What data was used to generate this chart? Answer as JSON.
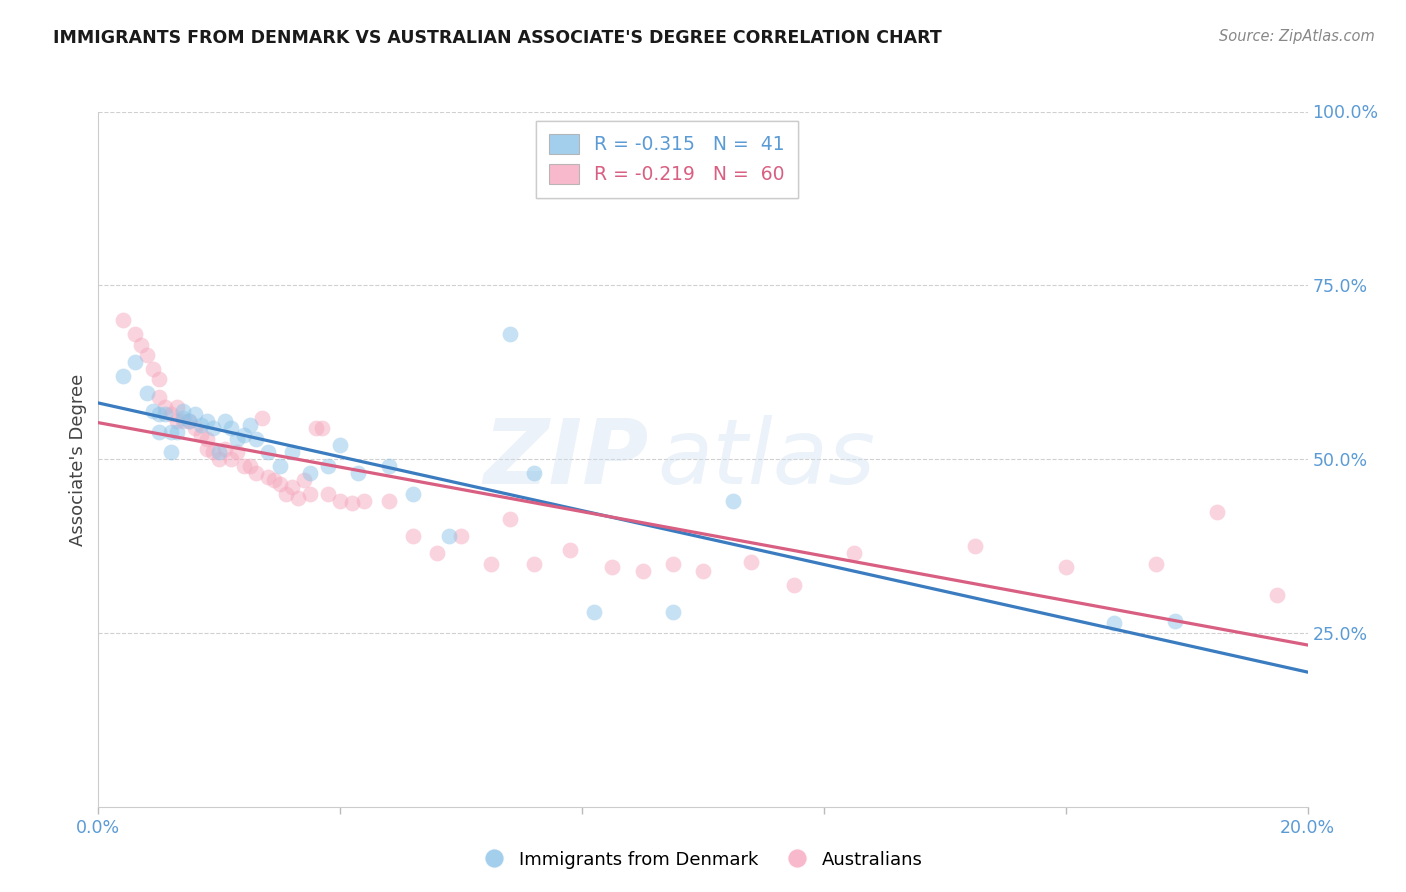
{
  "title": "IMMIGRANTS FROM DENMARK VS AUSTRALIAN ASSOCIATE'S DEGREE CORRELATION CHART",
  "source": "Source: ZipAtlas.com",
  "ylabel": "Associate's Degree",
  "legend_label_blue": "Immigrants from Denmark",
  "legend_label_pink": "Australians",
  "legend_blue_r": "-0.315",
  "legend_blue_n": "41",
  "legend_pink_r": "-0.219",
  "legend_pink_n": "60",
  "xmin": 0.0,
  "xmax": 0.2,
  "ymin": 0.0,
  "ymax": 1.0,
  "blue_color": "#8ec4e8",
  "pink_color": "#f5a8be",
  "blue_line_color": "#3a7cbf",
  "pink_line_color": "#d95f82",
  "right_axis_color": "#5b9bd5",
  "title_color": "#1a1a1a",
  "source_color": "#888888",
  "background_color": "#ffffff",
  "grid_color": "#d0d0d0",
  "blue_points_x": [
    0.004,
    0.006,
    0.008,
    0.009,
    0.01,
    0.01,
    0.011,
    0.012,
    0.012,
    0.013,
    0.014,
    0.014,
    0.015,
    0.016,
    0.017,
    0.018,
    0.019,
    0.02,
    0.021,
    0.022,
    0.023,
    0.024,
    0.025,
    0.026,
    0.028,
    0.03,
    0.032,
    0.035,
    0.038,
    0.04,
    0.043,
    0.048,
    0.052,
    0.058,
    0.068,
    0.072,
    0.082,
    0.095,
    0.105,
    0.168,
    0.178
  ],
  "blue_points_y": [
    0.62,
    0.64,
    0.595,
    0.57,
    0.565,
    0.54,
    0.565,
    0.54,
    0.51,
    0.54,
    0.57,
    0.56,
    0.555,
    0.565,
    0.55,
    0.555,
    0.545,
    0.51,
    0.555,
    0.545,
    0.53,
    0.535,
    0.55,
    0.53,
    0.51,
    0.49,
    0.51,
    0.48,
    0.49,
    0.52,
    0.48,
    0.49,
    0.45,
    0.39,
    0.68,
    0.48,
    0.28,
    0.28,
    0.44,
    0.265,
    0.268
  ],
  "pink_points_x": [
    0.004,
    0.006,
    0.007,
    0.008,
    0.009,
    0.01,
    0.01,
    0.011,
    0.012,
    0.013,
    0.013,
    0.014,
    0.015,
    0.016,
    0.017,
    0.018,
    0.018,
    0.019,
    0.02,
    0.021,
    0.022,
    0.023,
    0.024,
    0.025,
    0.026,
    0.027,
    0.028,
    0.029,
    0.03,
    0.031,
    0.032,
    0.033,
    0.034,
    0.035,
    0.036,
    0.037,
    0.038,
    0.04,
    0.042,
    0.044,
    0.048,
    0.052,
    0.056,
    0.06,
    0.065,
    0.068,
    0.072,
    0.078,
    0.085,
    0.09,
    0.095,
    0.1,
    0.108,
    0.115,
    0.125,
    0.145,
    0.16,
    0.175,
    0.185,
    0.195
  ],
  "pink_points_y": [
    0.7,
    0.68,
    0.665,
    0.65,
    0.63,
    0.615,
    0.59,
    0.575,
    0.565,
    0.555,
    0.575,
    0.555,
    0.555,
    0.545,
    0.535,
    0.53,
    0.515,
    0.51,
    0.5,
    0.515,
    0.5,
    0.51,
    0.49,
    0.49,
    0.48,
    0.56,
    0.475,
    0.47,
    0.465,
    0.45,
    0.46,
    0.445,
    0.47,
    0.45,
    0.545,
    0.545,
    0.45,
    0.44,
    0.438,
    0.44,
    0.44,
    0.39,
    0.365,
    0.39,
    0.35,
    0.415,
    0.35,
    0.37,
    0.345,
    0.34,
    0.35,
    0.34,
    0.352,
    0.32,
    0.365,
    0.375,
    0.345,
    0.35,
    0.425,
    0.305
  ],
  "marker_size": 130,
  "marker_alpha": 0.5
}
